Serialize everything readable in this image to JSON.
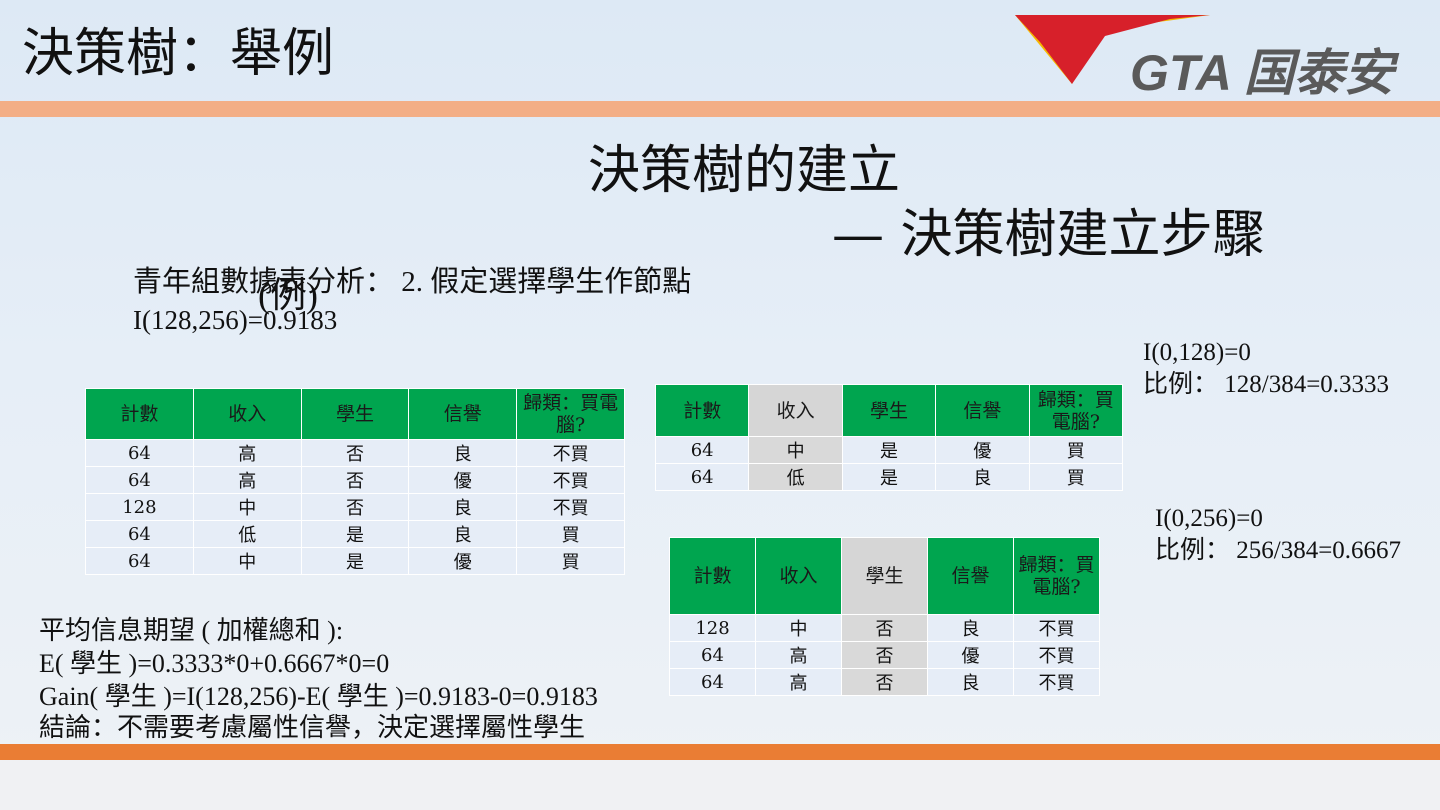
{
  "header": {
    "title": "決策樹：舉例",
    "logo_text": "GTA 国泰安"
  },
  "colors": {
    "table_header": "#00a54f",
    "band_top": "#f3ae86",
    "band_bottom": "#ea7d34",
    "logo_red": "#d7202a",
    "logo_yellow": "#f5b800"
  },
  "slide": {
    "main_title": "決策樹的建立",
    "sub_title": "— 決策樹建立步驟",
    "analysis": "青年組數據表分析： 2. 假定選擇學生作節點",
    "analysis_i": "I(128,256)=0.9183",
    "eg": "(例)"
  },
  "stats": {
    "s1": "I(0,128)=0",
    "s2": "比例： 128/384=0.3333",
    "s3": "I(0,256)=0",
    "s4": "比例： 256/384=0.6667"
  },
  "conclusion": {
    "l1": "平均信息期望 ( 加權總和 ):",
    "l2": "E( 學生 )=0.3333*0+0.6667*0=0",
    "l3": "Gain( 學生 )=I(128,256)-E( 學生 )=0.9183-0=0.9183",
    "l4": "結論：不需要考慮屬性信譽，決定選擇屬性學生"
  },
  "table_main": {
    "headers": [
      "計數",
      "收入",
      "學生",
      "信譽",
      "歸類：買電腦?"
    ],
    "rows": [
      [
        "64",
        "高",
        "否",
        "良",
        "不買"
      ],
      [
        "64",
        "高",
        "否",
        "優",
        "不買"
      ],
      [
        "128",
        "中",
        "否",
        "良",
        "不買"
      ],
      [
        "64",
        "低",
        "是",
        "良",
        "買"
      ],
      [
        "64",
        "中",
        "是",
        "優",
        "買"
      ]
    ]
  },
  "table_yes": {
    "headers": [
      "計數",
      "收入",
      "學生",
      "信譽",
      "歸類：買電腦?"
    ],
    "rows": [
      [
        "64",
        "中",
        "是",
        "優",
        "買"
      ],
      [
        "64",
        "低",
        "是",
        "良",
        "買"
      ]
    ]
  },
  "table_no": {
    "headers": [
      "計數",
      "收入",
      "學生",
      "信譽",
      "歸類：買電腦?"
    ],
    "rows": [
      [
        "128",
        "中",
        "否",
        "良",
        "不買"
      ],
      [
        "64",
        "高",
        "否",
        "優",
        "不買"
      ],
      [
        "64",
        "高",
        "否",
        "良",
        "不買"
      ]
    ]
  }
}
